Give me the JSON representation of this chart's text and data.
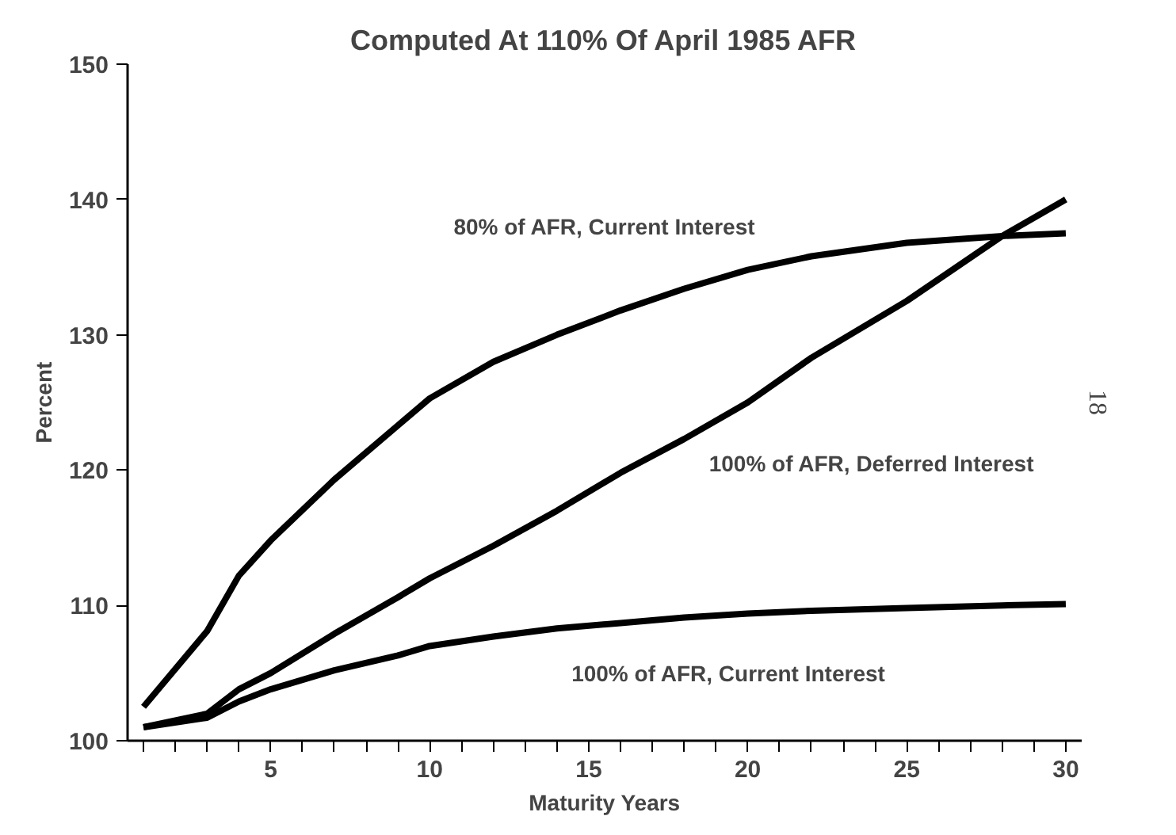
{
  "chart_data": {
    "type": "line",
    "title": "Computed At 110% Of April 1985 AFR",
    "xlabel": "Maturity Years",
    "ylabel": "Percent",
    "x": [
      1,
      3,
      4,
      5,
      7,
      9,
      10,
      12,
      14,
      16,
      18,
      20,
      22,
      25,
      28,
      30
    ],
    "series": [
      {
        "color": "#000000",
        "values": [
          102.5,
          108.1,
          112.2,
          114.8,
          119.3,
          123.3,
          125.3,
          128,
          130,
          131.8,
          133.4,
          134.8,
          135.8,
          136.8,
          137.3,
          137.5
        ]
      },
      {
        "color": "#000000",
        "values": [
          101,
          102,
          103.8,
          105,
          107.9,
          110.6,
          112,
          114.4,
          117,
          119.8,
          122.3,
          125,
          128.3,
          132.5,
          137.3,
          140
        ]
      },
      {
        "color": "#000000",
        "values": [
          101,
          101.7,
          102.9,
          103.8,
          105.2,
          106.3,
          107,
          107.7,
          108.3,
          108.7,
          109.1,
          109.4,
          109.6,
          109.8,
          110,
          110.1
        ]
      }
    ],
    "annotations": [
      "80% of AFR, Current Interest",
      "100% of AFR, Deferred Interest",
      "100% of AFR, Current Interest",
      "18"
    ],
    "xlim": [
      0.5,
      30.5
    ],
    "ylim": [
      100,
      150
    ],
    "xticks": [
      {
        "value": 1,
        "label": null
      },
      {
        "value": 2,
        "label": null
      },
      {
        "value": 3,
        "label": null
      },
      {
        "value": 4,
        "label": null
      },
      5,
      {
        "value": 6,
        "label": null
      },
      {
        "value": 7,
        "label": null
      },
      {
        "value": 8,
        "label": null
      },
      {
        "value": 9,
        "label": null
      },
      10,
      {
        "value": 11,
        "label": null
      },
      {
        "value": 12,
        "label": null
      },
      {
        "value": 13,
        "label": null
      },
      {
        "value": 14,
        "label": null
      },
      15,
      {
        "value": 16,
        "label": null
      },
      {
        "value": 17,
        "label": null
      },
      {
        "value": 18,
        "label": null
      },
      {
        "value": 19,
        "label": null
      },
      20,
      {
        "value": 21,
        "label": null
      },
      {
        "value": 22,
        "label": null
      },
      {
        "value": 23,
        "label": null
      },
      {
        "value": 24,
        "label": null
      },
      25,
      {
        "value": 26,
        "label": null
      },
      {
        "value": 27,
        "label": null
      },
      {
        "value": 28,
        "label": null
      },
      {
        "value": 29,
        "label": null
      },
      30
    ],
    "yticks": [
      100,
      110,
      120,
      130,
      140,
      150
    ],
    "grid": false,
    "marker": "none",
    "line_style": "solid"
  }
}
